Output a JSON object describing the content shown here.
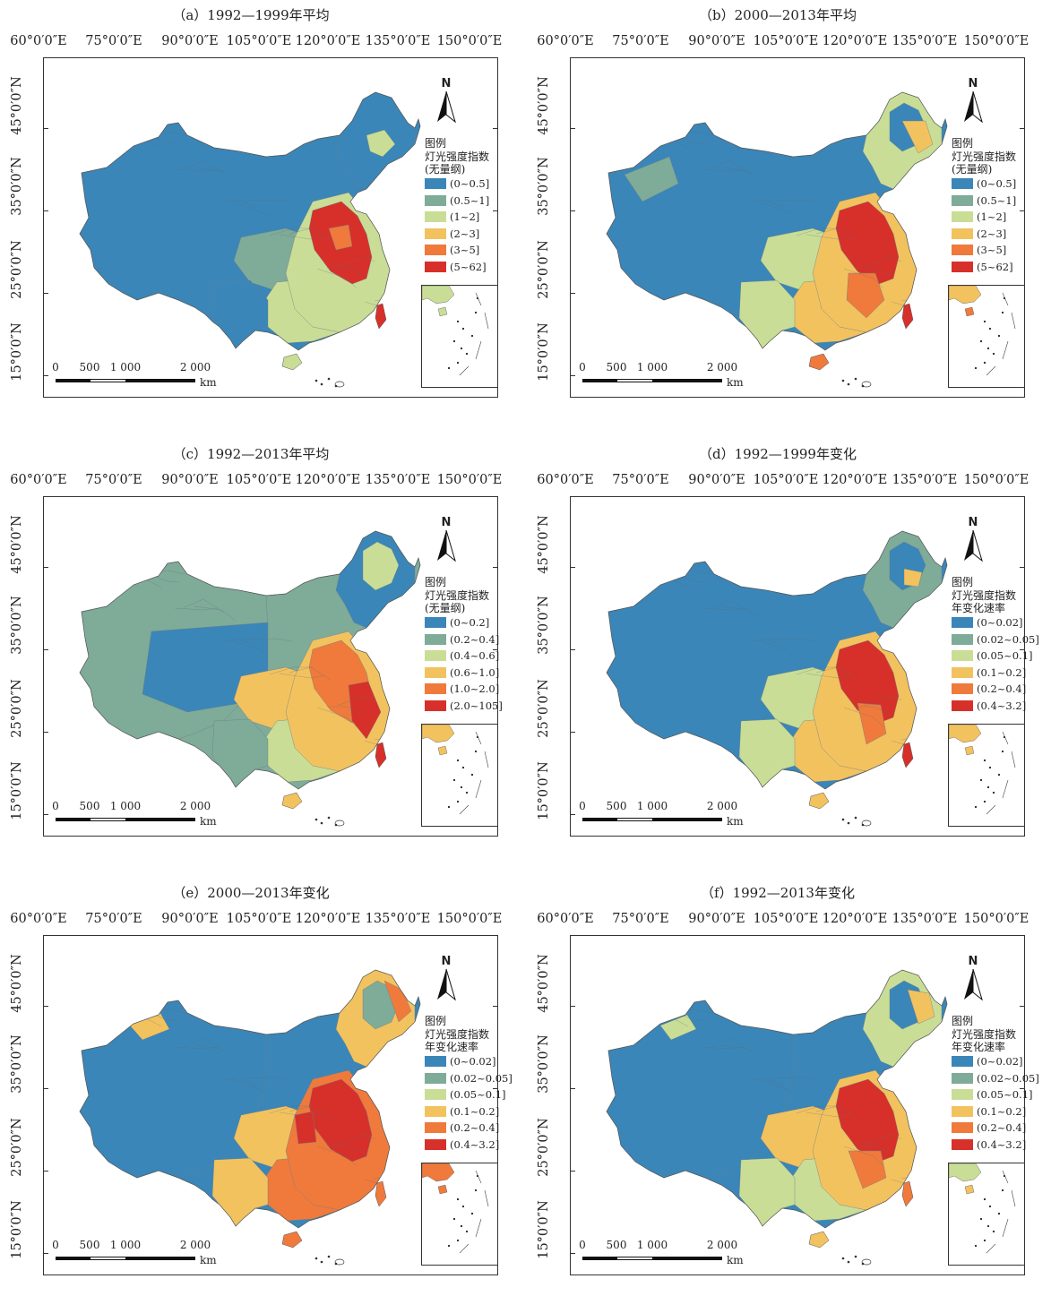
{
  "panels": [
    {
      "title": "（a）1992—1999年平均",
      "legend": {
        "heading": "图例",
        "subtitle": [
          "灯光强度指数",
          "(无量纲)"
        ],
        "items": [
          "(0~0.5]",
          "(0.5~1]",
          "(1~2]",
          "(2~3]",
          "(3~5]",
          "(5~62]"
        ]
      }
    },
    {
      "title": "（b）2000—2013年平均",
      "legend": {
        "heading": "图例",
        "subtitle": [
          "灯光强度指数",
          "(无量纲)"
        ],
        "items": [
          "(0~0.5]",
          "(0.5~1]",
          "(1~2]",
          "(2~3]",
          "(3~5]",
          "(5~62]"
        ]
      }
    },
    {
      "title": "（c）1992—2013年平均",
      "legend": {
        "heading": "图例",
        "subtitle": [
          "灯光强度指数",
          "(无量纲)"
        ],
        "items": [
          "(0~0.2]",
          "(0.2~0.4]",
          "(0.4~0.6]",
          "(0.6~1.0]",
          "(1.0~2.0]",
          "(2.0~105]"
        ]
      }
    },
    {
      "title": "（d）1992—1999年变化",
      "legend": {
        "heading": "图例",
        "subtitle": [
          "灯光强度指数",
          "年变化速率"
        ],
        "items": [
          "(0~0.02]",
          "(0.02~0.05]",
          "(0.05~0.1]",
          "(0.1~0.2]",
          "(0.2~0.4]",
          "(0.4~3.2]"
        ]
      }
    },
    {
      "title": "（e）2000—2013年变化",
      "legend": {
        "heading": "图例",
        "subtitle": [
          "灯光强度指数",
          "年变化速率"
        ],
        "items": [
          "(0~0.02]",
          "(0.02~0.05]",
          "(0.05~0.1]",
          "(0.1~0.2]",
          "(0.2~0.4]",
          "(0.4~3.2]"
        ]
      }
    },
    {
      "title": "（f）1992—2013年变化",
      "legend": {
        "heading": "图例",
        "subtitle": [
          "灯光强度指数",
          "年变化速率"
        ],
        "items": [
          "(0~0.02]",
          "(0.02~0.05]",
          "(0.05~0.1]",
          "(0.1~0.2]",
          "(0.2~0.4]",
          "(0.4~3.2]"
        ]
      }
    }
  ],
  "longitude_labels": [
    "60°0′0″E",
    "75°0′0″E",
    "90°0′0″E",
    "105°0′0″E",
    "120°0′0″E",
    "135°0′0″E",
    "150°0′0″E"
  ],
  "latitude_labels": [
    "45°0′0″N",
    "35°0′0″N",
    "25°0′0″N",
    "15°0′0″N"
  ],
  "scale_bar": {
    "ticks": [
      "0",
      "500",
      "1 000",
      "2 000"
    ],
    "unit": "km"
  },
  "north_arrow": "N",
  "class_colors": [
    "#3a86b8",
    "#7fab99",
    "#c9dd96",
    "#f2c25f",
    "#ef7a3c",
    "#d7302a"
  ]
}
